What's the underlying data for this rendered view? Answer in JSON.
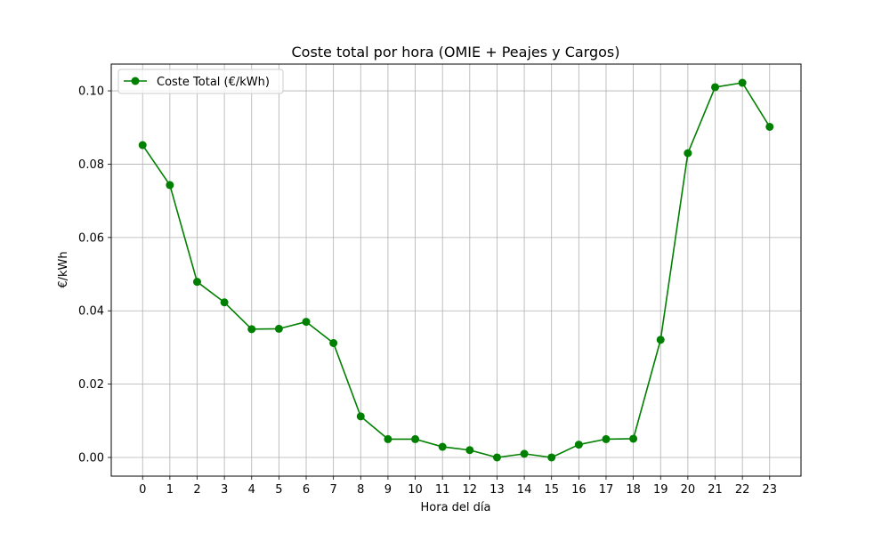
{
  "chart_data": {
    "type": "line",
    "title": "Coste total por hora (OMIE + Peajes y Cargos)",
    "xlabel": "Hora del día",
    "ylabel": "€/kWh",
    "x": [
      0,
      1,
      2,
      3,
      4,
      5,
      6,
      7,
      8,
      9,
      10,
      11,
      12,
      13,
      14,
      15,
      16,
      17,
      18,
      19,
      20,
      21,
      22,
      23
    ],
    "x_tick_labels": [
      "0",
      "1",
      "2",
      "3",
      "4",
      "5",
      "6",
      "7",
      "8",
      "9",
      "10",
      "11",
      "12",
      "13",
      "14",
      "15",
      "16",
      "17",
      "18",
      "19",
      "20",
      "21",
      "22",
      "23"
    ],
    "y_ticks": [
      0.0,
      0.02,
      0.04,
      0.06,
      0.08,
      0.1
    ],
    "y_tick_labels": [
      "0.00",
      "0.02",
      "0.04",
      "0.06",
      "0.08",
      "0.10"
    ],
    "xlim": [
      -1.15,
      24.15
    ],
    "ylim": [
      -0.0051,
      0.1073
    ],
    "grid": true,
    "legend_position": "top-left",
    "series": [
      {
        "name": "Coste Total (€/kWh)",
        "color": "#008000",
        "marker": "circle",
        "values": [
          0.0852,
          0.0743,
          0.0479,
          0.0423,
          0.035,
          0.0351,
          0.037,
          0.0312,
          0.0112,
          0.005,
          0.005,
          0.0029,
          0.002,
          0.0,
          0.001,
          0.0,
          0.0035,
          0.005,
          0.0051,
          0.0321,
          0.083,
          0.101,
          0.1022,
          0.0902
        ]
      }
    ]
  }
}
